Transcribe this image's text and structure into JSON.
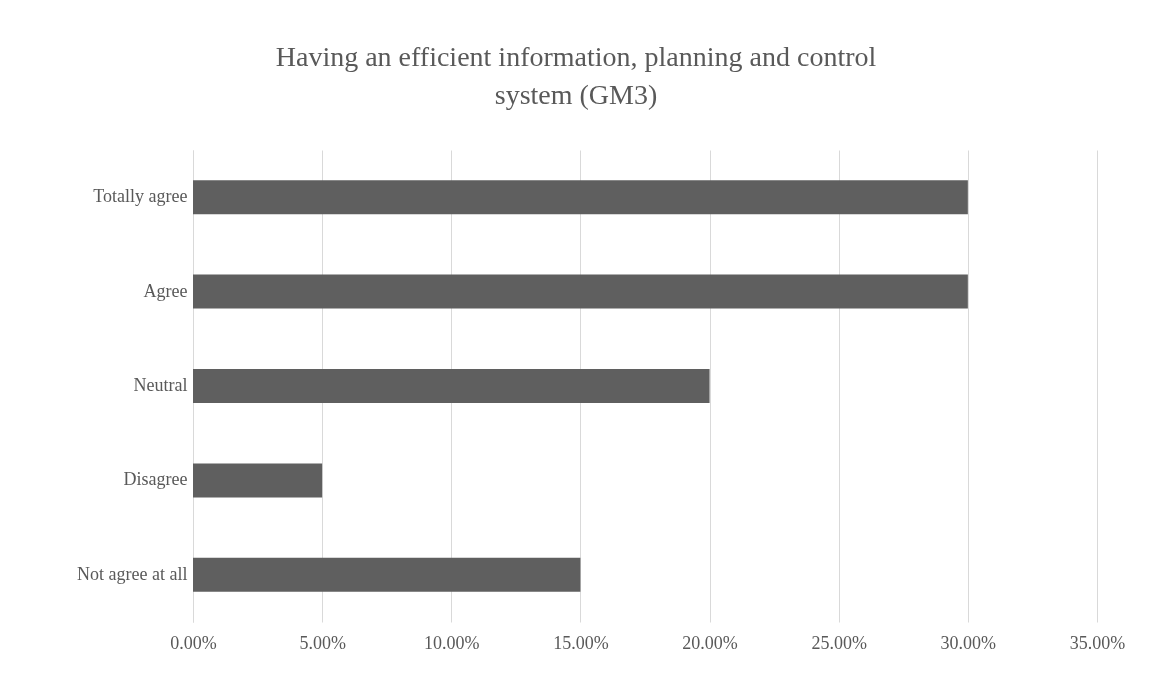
{
  "chart_data": {
    "type": "bar",
    "orientation": "horizontal",
    "title": "Having an efficient information, planning and control system (GM3)",
    "categories": [
      "Totally agree",
      "Agree",
      "Neutral",
      "Disagree",
      "Not agree at all"
    ],
    "values": [
      30,
      30,
      20,
      5,
      15
    ],
    "color": "#5f5f5f",
    "xlim": [
      0,
      35
    ],
    "xticks": [
      {
        "value": 0,
        "label": "0.00%"
      },
      {
        "value": 5,
        "label": "5.00%"
      },
      {
        "value": 10,
        "label": "10.00%"
      },
      {
        "value": 15,
        "label": "15.00%"
      },
      {
        "value": 20,
        "label": "20.00%"
      },
      {
        "value": 25,
        "label": "25.00%"
      },
      {
        "value": 30,
        "label": "30.00%"
      },
      {
        "value": 35,
        "label": "35.00%"
      }
    ],
    "grid": "x"
  }
}
